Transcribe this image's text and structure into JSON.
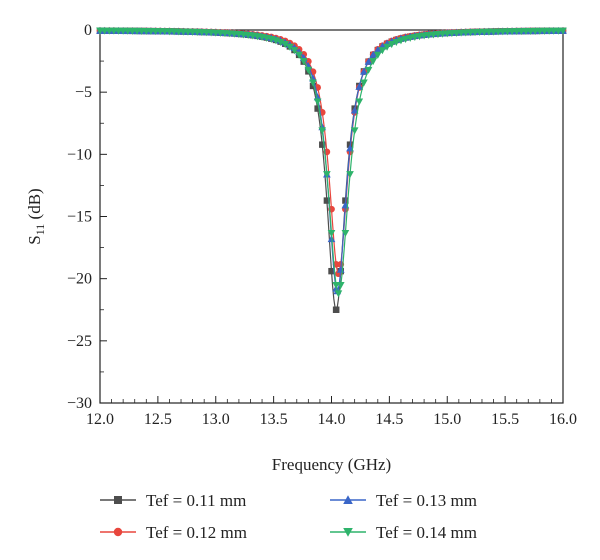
{
  "chart_data": {
    "type": "line",
    "title": "",
    "xlabel": "Frequency (GHz)",
    "ylabel": {
      "main": "S",
      "sub": "11",
      "unit": " (dB)"
    },
    "xlim": [
      12.0,
      16.0
    ],
    "ylim": [
      -30,
      0
    ],
    "x_ticks": [
      "12.0",
      "12.5",
      "13.0",
      "13.5",
      "14.0",
      "14.5",
      "15.0",
      "15.5",
      "16.0"
    ],
    "y_ticks": [
      "0",
      "−5",
      "−10",
      "−15",
      "−20",
      "−25",
      "−30"
    ],
    "grid": false,
    "legend_placement": "bottom",
    "series": [
      {
        "name": "Tef = 0.11 mm",
        "marker": "square",
        "color": "#4d4d4d",
        "f0": 14.04,
        "min_db": -22.5,
        "halfwidth": 0.1
      },
      {
        "name": "Tef = 0.12 mm",
        "marker": "circle",
        "color": "#e8463d",
        "f0": 14.06,
        "min_db": -19.6,
        "halfwidth": 0.1
      },
      {
        "name": "Tef = 0.13 mm",
        "marker": "triangle-up",
        "color": "#3a66c8",
        "f0": 14.05,
        "min_db": -21.0,
        "halfwidth": 0.1
      },
      {
        "name": "Tef = 0.14 mm",
        "marker": "triangle-down",
        "color": "#2eb36b",
        "f0": 14.06,
        "min_db": -21.2,
        "halfwidth": 0.11
      }
    ]
  }
}
